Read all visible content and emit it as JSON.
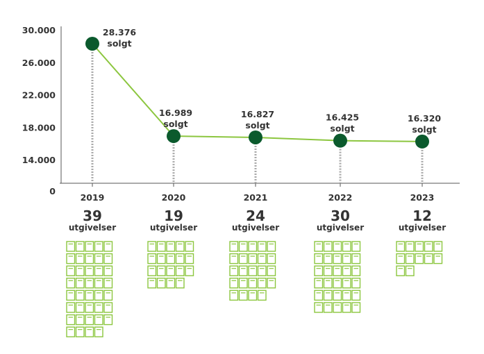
{
  "chart_data": {
    "type": "line",
    "categories": [
      "2019",
      "2020",
      "2021",
      "2022",
      "2023"
    ],
    "series": [
      {
        "values": [
          28376,
          16989,
          16827,
          16425,
          16320
        ]
      }
    ],
    "point_labels": [
      "28.376",
      "16.989",
      "16.827",
      "16.425",
      "16.320"
    ],
    "point_unit": "solgt",
    "y_ticks": [
      "30.000",
      "26.000",
      "22.000",
      "18.000",
      "14.000",
      "0"
    ],
    "y_tick_values": [
      30000,
      26000,
      22000,
      18000,
      14000
    ],
    "ylim": [
      0,
      30000
    ],
    "y_axis_break": true,
    "releases": {
      "values": [
        39,
        19,
        24,
        30,
        12
      ],
      "labels": [
        "39",
        "19",
        "24",
        "30",
        "12"
      ],
      "unit": "utgivelser"
    },
    "grid": false,
    "colors": {
      "line": "#8cc63f",
      "marker": "#0b5a2d",
      "book": "#8cc63f",
      "text": "#333333",
      "axis": "#555555",
      "dropline": "#aaaaaa"
    }
  }
}
